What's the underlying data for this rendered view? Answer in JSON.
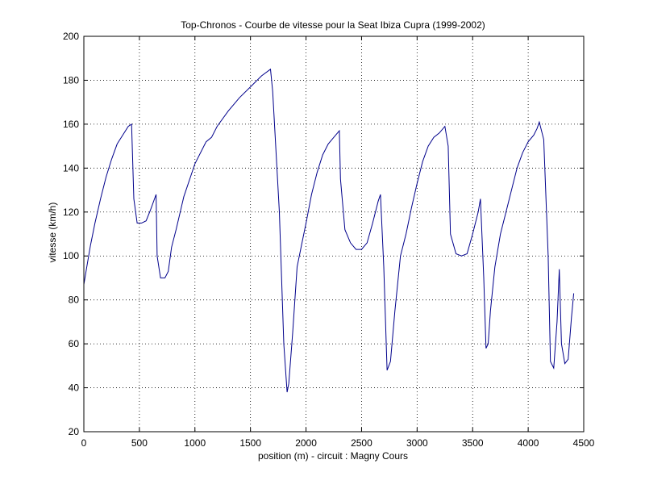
{
  "chart_data": {
    "type": "line",
    "title": "Top-Chronos - Courbe de vitesse pour la Seat Ibiza Cupra (1999-2002)",
    "xlabel": "position (m) - circuit : Magny Cours",
    "ylabel": "vitesse (km/h)",
    "xlim": [
      0,
      4500
    ],
    "ylim": [
      20,
      200
    ],
    "xticks": [
      0,
      500,
      1000,
      1500,
      2000,
      2500,
      3000,
      3500,
      4000,
      4500
    ],
    "yticks": [
      20,
      40,
      60,
      80,
      100,
      120,
      140,
      160,
      180,
      200
    ],
    "grid": true,
    "colors": {
      "series": "#00008b"
    },
    "series": [
      {
        "x": [
          0,
          30,
          60,
          100,
          150,
          200,
          250,
          300,
          350,
          400,
          430,
          450,
          480,
          520,
          560,
          600,
          650,
          660,
          690,
          730,
          760,
          790,
          830,
          900,
          1000,
          1100,
          1150,
          1200,
          1300,
          1400,
          1500,
          1600,
          1680,
          1700,
          1760,
          1800,
          1830,
          1845,
          1880,
          1920,
          1960,
          2000,
          2050,
          2100,
          2150,
          2200,
          2250,
          2300,
          2310,
          2350,
          2400,
          2450,
          2500,
          2550,
          2600,
          2650,
          2670,
          2700,
          2730,
          2760,
          2800,
          2850,
          2900,
          2950,
          3000,
          3050,
          3100,
          3150,
          3200,
          3250,
          3280,
          3300,
          3350,
          3400,
          3450,
          3500,
          3550,
          3570,
          3600,
          3620,
          3640,
          3660,
          3700,
          3750,
          3800,
          3850,
          3900,
          3950,
          4000,
          4050,
          4080,
          4100,
          4140,
          4180,
          4200,
          4230,
          4260,
          4280,
          4300,
          4330,
          4360,
          4390,
          4410
        ],
        "y": [
          87,
          96,
          105,
          115,
          126,
          136,
          144,
          151,
          155,
          159,
          160,
          126,
          115,
          115,
          116,
          121,
          128,
          100,
          90,
          90,
          93,
          104,
          112,
          127,
          142,
          152,
          154,
          159,
          166,
          172,
          177,
          182,
          185,
          175,
          120,
          60,
          38,
          42,
          65,
          95,
          105,
          115,
          128,
          138,
          146,
          151,
          154,
          157,
          135,
          112,
          106,
          103,
          103,
          106,
          115,
          125,
          128,
          95,
          48,
          52,
          75,
          100,
          110,
          122,
          133,
          143,
          150,
          154,
          156,
          159,
          150,
          110,
          101,
          100,
          101,
          110,
          120,
          126,
          90,
          58,
          60,
          75,
          95,
          110,
          120,
          130,
          140,
          147,
          152,
          155,
          158,
          161,
          153,
          100,
          52,
          49,
          70,
          94,
          60,
          51,
          53,
          72,
          83
        ]
      }
    ]
  }
}
